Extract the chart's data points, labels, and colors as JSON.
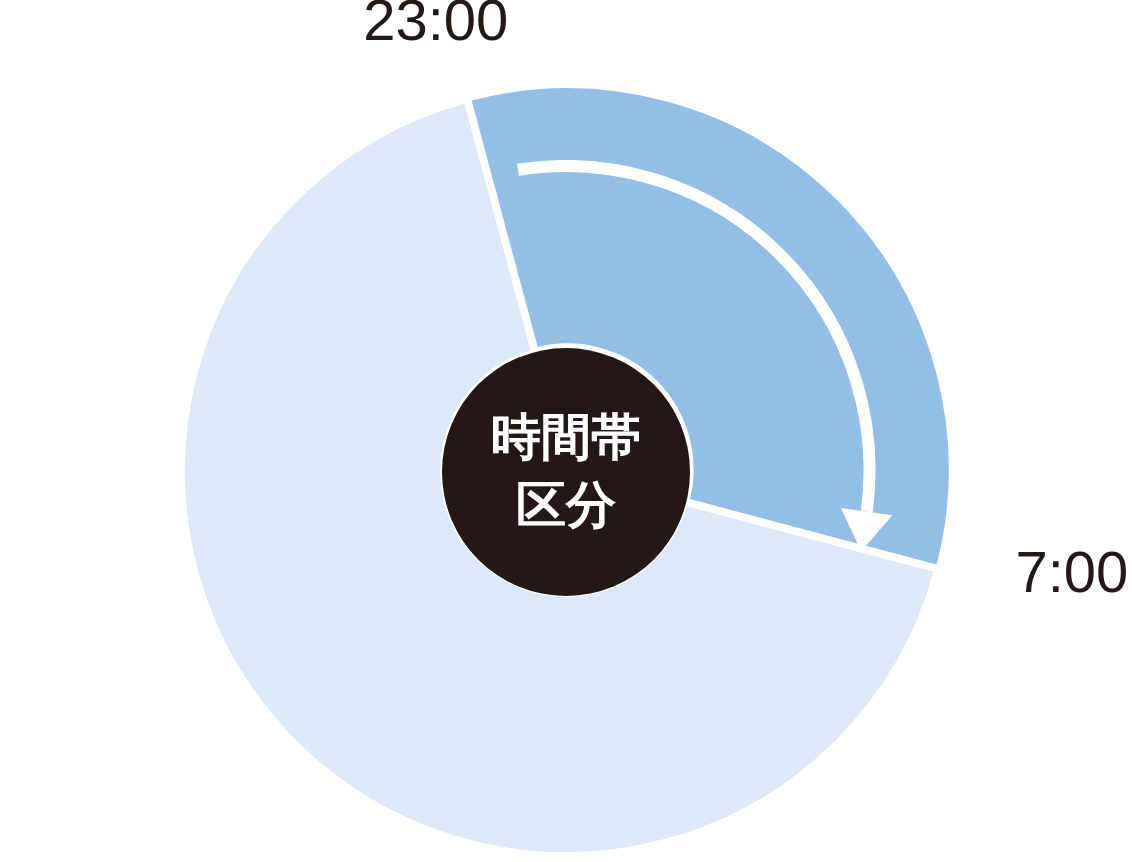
{
  "chart_data": {
    "type": "donut",
    "title": "時間帯区分",
    "categories": [
      null,
      null
    ],
    "values": [
      33.3,
      66.7
    ],
    "colors": [
      "#93bfe6",
      "#dde9f6"
    ],
    "annotations": [
      "23:00",
      "7:00"
    ],
    "legend": false
  }
}
